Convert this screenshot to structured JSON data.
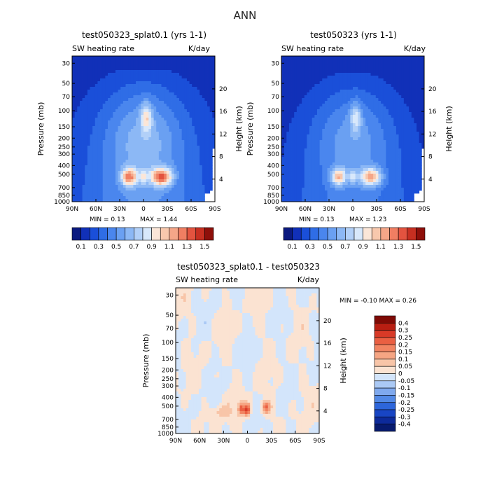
{
  "page_title": "ANN",
  "colors": {
    "blue_scale": [
      "#0b1a80",
      "#1130b8",
      "#1a4fd9",
      "#2f6de6",
      "#4a86ee",
      "#6aa0f2",
      "#8cb8f5",
      "#b2d0f8",
      "#d8e8fb"
    ],
    "warm_scale": [
      "#fbe6d8",
      "#f8c8ad",
      "#f5a688",
      "#f07e62",
      "#e3533f",
      "#c72f21",
      "#8e0f0a"
    ],
    "diff_pos": [
      "#fbe3d2",
      "#f8c5a8",
      "#f6a583",
      "#f28462",
      "#ea5f42",
      "#d83a27",
      "#b81e12",
      "#7f0a05"
    ],
    "diff_neg": [
      "#d3e5fb",
      "#aac9f5",
      "#7fa9ee",
      "#5289e6",
      "#2d66db",
      "#1845c4",
      "#0d2a9a",
      "#071a6e"
    ]
  },
  "chart_data": [
    {
      "type": "heatmap",
      "title": "test050323_splat0.1 (yrs 1-1)",
      "subtitle_left": "SW heating rate",
      "subtitle_right": "K/day",
      "xlabel": "",
      "ylabel": "Pressure (mb)",
      "ylabel_right": "Height (km)",
      "x_ticks": [
        "90N",
        "60N",
        "30N",
        "0",
        "30S",
        "60S",
        "90S"
      ],
      "y_ticks": [
        "30",
        "50",
        "70",
        "100",
        "150",
        "200",
        "250",
        "300",
        "400",
        "500",
        "700",
        "850",
        "1000"
      ],
      "y_ticks_right": [
        "20",
        "16",
        "12",
        "8",
        "4"
      ],
      "min_label": "MIN = 0.13",
      "max_label": "MAX = 1.44",
      "colorbar_ticks": [
        "0.1",
        "0.3",
        "0.5",
        "0.7",
        "0.9",
        "1.1",
        "1.3",
        "1.5"
      ],
      "peak_max": 1.44
    },
    {
      "type": "heatmap",
      "title": "test050323 (yrs 1-1)",
      "subtitle_left": "SW heating rate",
      "subtitle_right": "K/day",
      "xlabel": "",
      "ylabel": "Pressure (mb)",
      "ylabel_right": "Height (km)",
      "x_ticks": [
        "90N",
        "60N",
        "30N",
        "0",
        "30S",
        "60S",
        "90S"
      ],
      "y_ticks": [
        "30",
        "50",
        "70",
        "100",
        "150",
        "200",
        "250",
        "300",
        "400",
        "500",
        "700",
        "850",
        "1000"
      ],
      "y_ticks_right": [
        "20",
        "16",
        "12",
        "8",
        "4"
      ],
      "min_label": "MIN = 0.13",
      "max_label": "MAX = 1.23",
      "colorbar_ticks": [
        "0.1",
        "0.3",
        "0.5",
        "0.7",
        "0.9",
        "1.1",
        "1.3",
        "1.5"
      ],
      "peak_max": 1.23
    },
    {
      "type": "heatmap",
      "title": "test050323_splat0.1 - test050323",
      "subtitle_left": "SW heating rate",
      "subtitle_right": "K/day",
      "xlabel": "",
      "ylabel": "Pressure (mb)",
      "ylabel_right": "Height (km)",
      "x_ticks": [
        "90N",
        "60N",
        "30N",
        "0",
        "30S",
        "60S",
        "90S"
      ],
      "y_ticks": [
        "30",
        "50",
        "70",
        "100",
        "150",
        "200",
        "250",
        "300",
        "400",
        "500",
        "700",
        "850",
        "1000"
      ],
      "y_ticks_right": [
        "20",
        "16",
        "12",
        "8",
        "4"
      ],
      "minmax_label": "MIN = -0.10 MAX = 0.26",
      "colorbar_ticks": [
        "0.4",
        "0.3",
        "0.25",
        "0.2",
        "0.15",
        "0.1",
        "0.05",
        "0",
        "-0.05",
        "-0.1",
        "-0.15",
        "-0.2",
        "-0.25",
        "-0.3",
        "-0.4"
      ]
    }
  ]
}
